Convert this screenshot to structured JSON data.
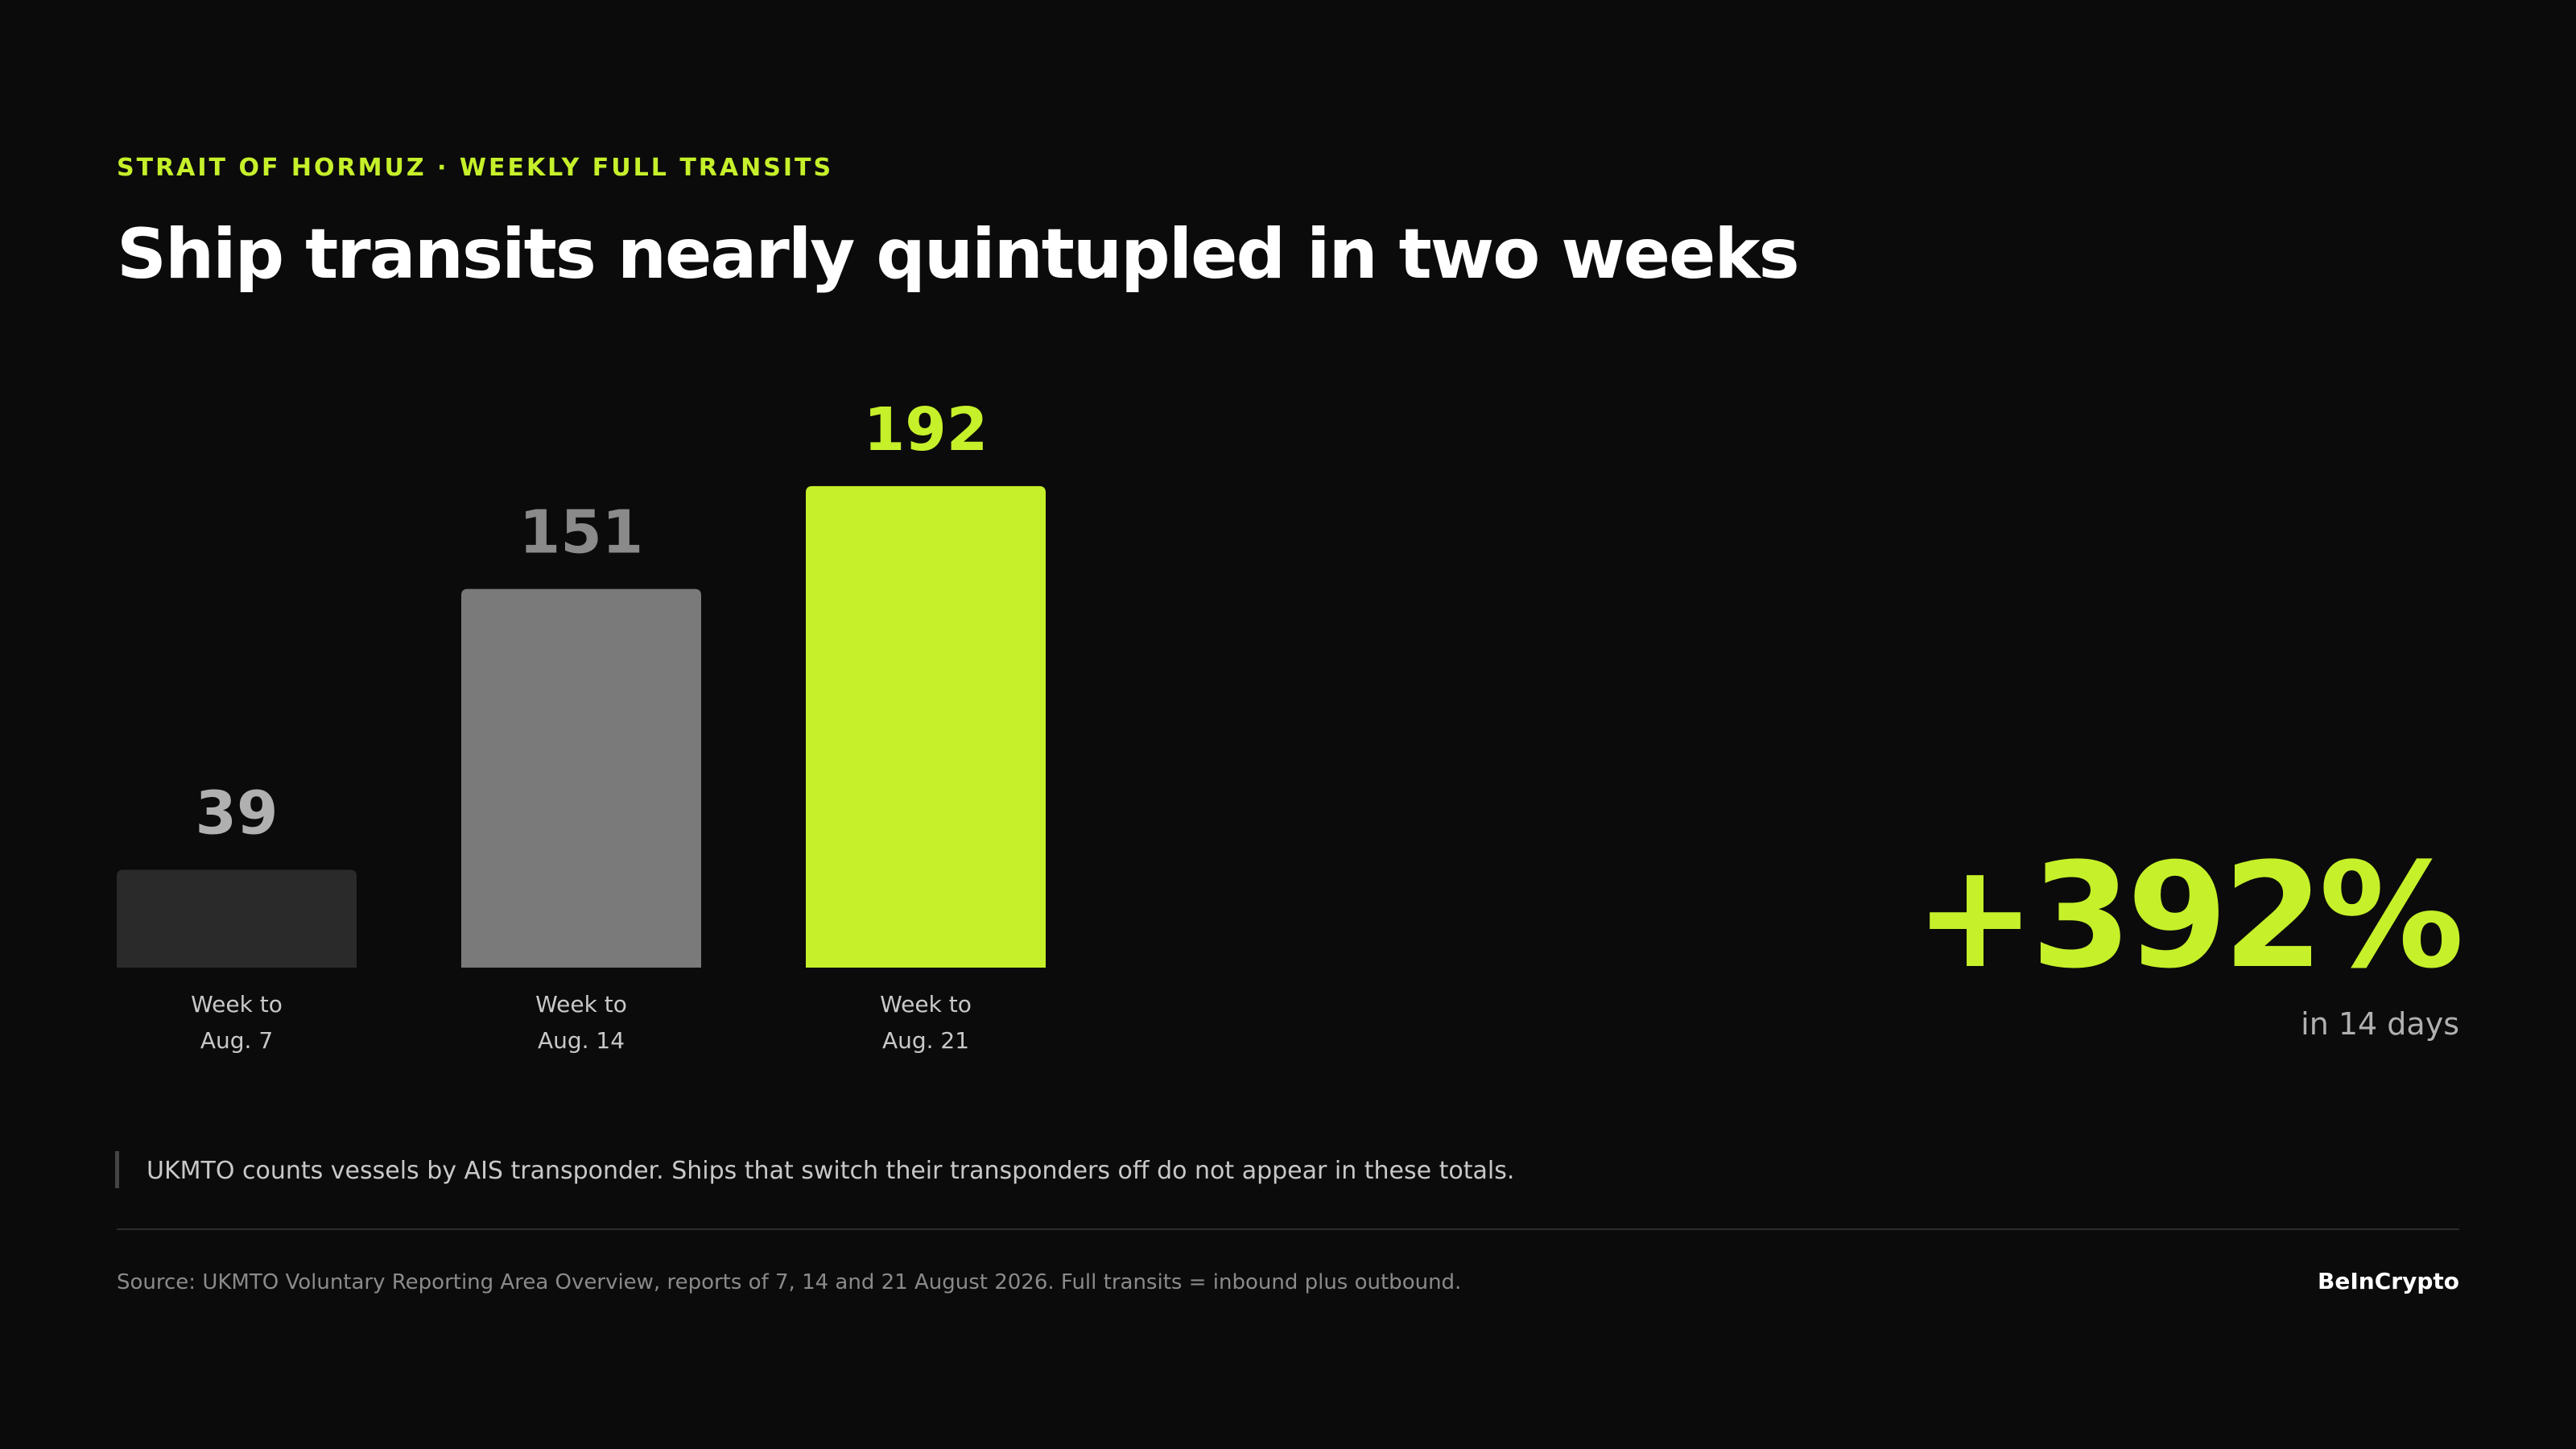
{
  "kicker": "STRAIT OF HORMUZ · WEEKLY FULL TRANSITS",
  "chart_data": {
    "type": "bar",
    "title": "Ship transits nearly quintupled in two weeks",
    "categories": [
      [
        "Week to",
        "Aug. 7"
      ],
      [
        "Week to",
        "Aug. 14"
      ],
      [
        "Week to",
        "Aug. 21"
      ]
    ],
    "values": [
      39,
      151,
      192
    ],
    "colors": [
      "#2a2a2a",
      "#7a7a7a",
      "#c6f02a"
    ],
    "label_colors": [
      "#b0b0b0",
      "#8a8a8a",
      "#c6f02a"
    ]
  },
  "highlight": {
    "value": "+392%",
    "caption": "in 14 days"
  },
  "note": "UKMTO counts vessels by AIS transponder. Ships that switch their transponders off do not appear in these totals.",
  "source": "Source: UKMTO Voluntary Reporting Area Overview, reports of 7, 14 and 21 August 2026. Full transits = inbound plus outbound.",
  "brand": "BeInCrypto"
}
